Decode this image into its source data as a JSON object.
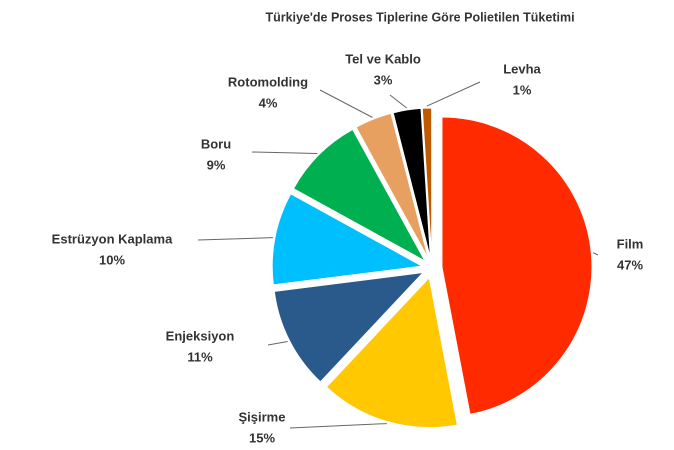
{
  "chart_data": {
    "type": "pie",
    "title": "Türkiye'de Proses Tiplerine Göre Polietilen Tüketimi",
    "categories": [
      "Film",
      "Şişirme",
      "Enjeksiyon",
      "Estrüzyon Kaplama",
      "Boru",
      "Rotomolding",
      "Tel ve Kablo",
      "Levha"
    ],
    "values": [
      47,
      15,
      11,
      10,
      9,
      4,
      3,
      1
    ],
    "value_labels": [
      "47%",
      "15%",
      "11%",
      "10%",
      "9%",
      "4%",
      "3%",
      "1%"
    ],
    "colors": [
      "#ff2a00",
      "#ffc800",
      "#2a5a8c",
      "#00bfff",
      "#00b050",
      "#e8a060",
      "#000000",
      "#c05a00"
    ]
  }
}
